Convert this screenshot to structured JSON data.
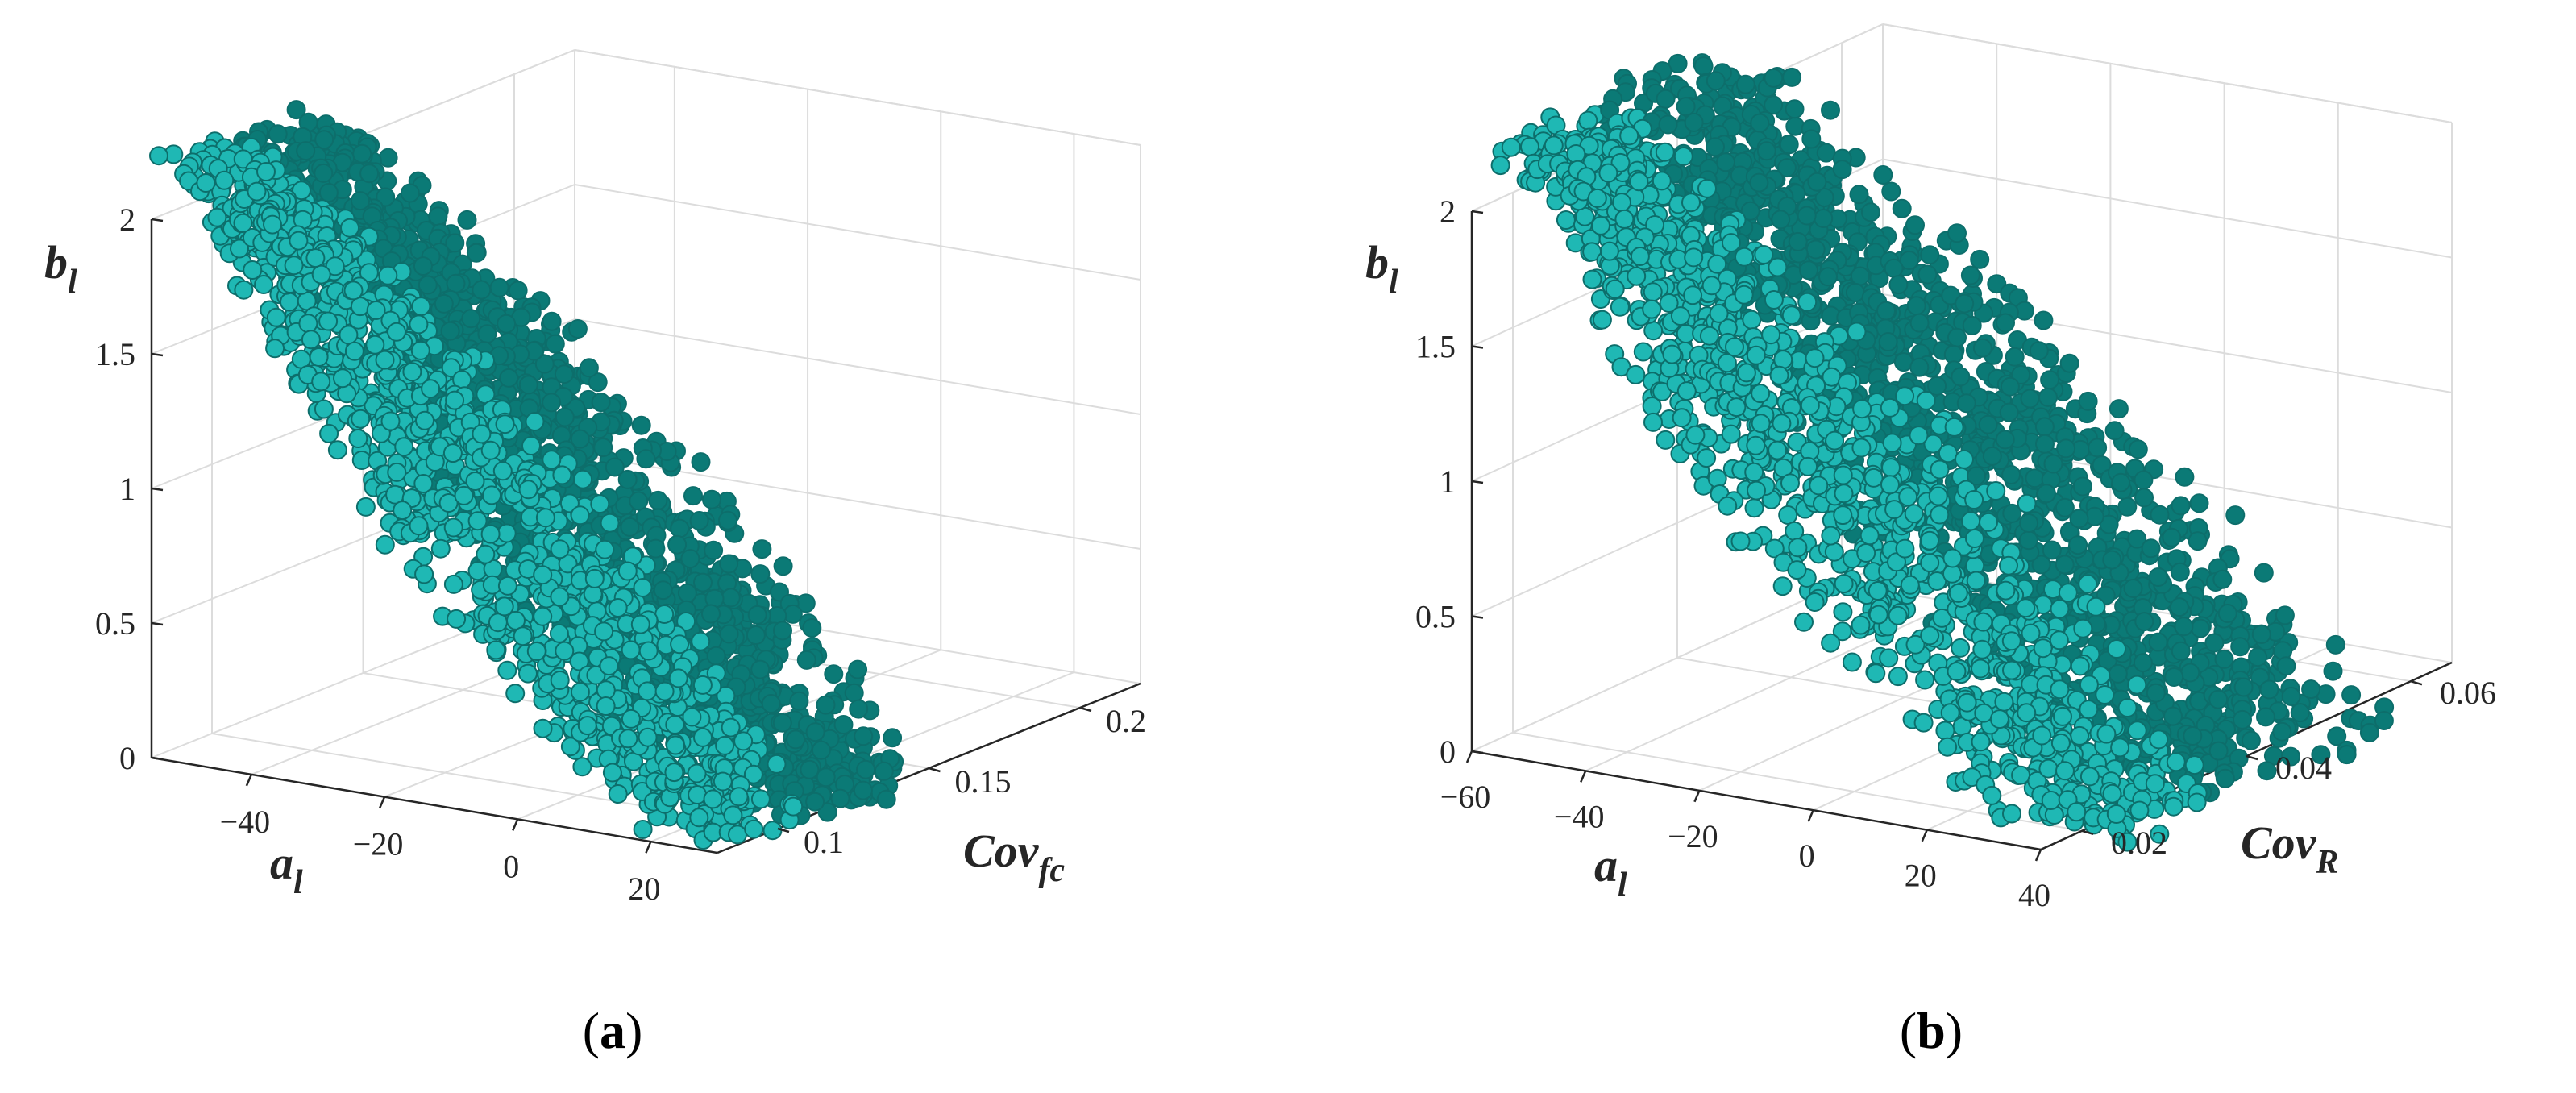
{
  "colors": {
    "marker_fill": "#1fb8b4",
    "marker_edge": "#0d6e6b",
    "dense_fill": "#0b7a76",
    "axis": "#262626",
    "grid": "#dcdcdc"
  },
  "chart_data": [
    {
      "type": "scatter",
      "caption": "a",
      "x_axis": {
        "var": "a",
        "sub": "l",
        "ticks": [
          "−40",
          "−20",
          "0",
          "20"
        ],
        "tick_values": [
          -40,
          -20,
          0,
          20
        ],
        "range": [
          -55,
          30
        ]
      },
      "y_axis": {
        "var": "Cov",
        "sub": "fc",
        "ticks": [
          "0.1",
          "0.15",
          "0.2"
        ],
        "tick_values": [
          0.1,
          0.15,
          0.2
        ],
        "range": [
          0.08,
          0.22
        ]
      },
      "z_axis": {
        "var": "b",
        "sub": "l",
        "ticks": [
          "0",
          "0.5",
          "1",
          "1.5",
          "2"
        ],
        "tick_values": [
          0,
          0.5,
          1,
          1.5,
          2
        ],
        "range": [
          0,
          2
        ]
      },
      "grid": true,
      "point_cloud": {
        "x_range": [
          -50,
          25
        ],
        "y_range": [
          0.085,
          0.14
        ],
        "z_range": [
          0,
          2.2
        ],
        "relation": "b_l decreases as a_l increases"
      }
    },
    {
      "type": "scatter",
      "caption": "b",
      "x_axis": {
        "var": "a",
        "sub": "l",
        "ticks": [
          "−60",
          "−40",
          "−20",
          "0",
          "20",
          "40"
        ],
        "tick_values": [
          -60,
          -40,
          -20,
          0,
          20,
          40
        ],
        "range": [
          -60,
          40
        ]
      },
      "y_axis": {
        "var": "Cov",
        "sub": "R",
        "ticks": [
          "0.02",
          "0.04",
          "0.06"
        ],
        "tick_values": [
          0.02,
          0.04,
          0.06
        ],
        "range": [
          0.015,
          0.065
        ]
      },
      "z_axis": {
        "var": "b",
        "sub": "l",
        "ticks": [
          "0",
          "0.5",
          "1",
          "1.5",
          "2"
        ],
        "tick_values": [
          0,
          0.5,
          1,
          1.5,
          2
        ],
        "range": [
          0,
          2
        ]
      },
      "grid": true,
      "point_cloud": {
        "x_range": [
          -55,
          40
        ],
        "y_range": [
          0.018,
          0.05
        ],
        "z_range": [
          0,
          2.2
        ],
        "relation": "b_l decreases as a_l increases"
      }
    }
  ]
}
